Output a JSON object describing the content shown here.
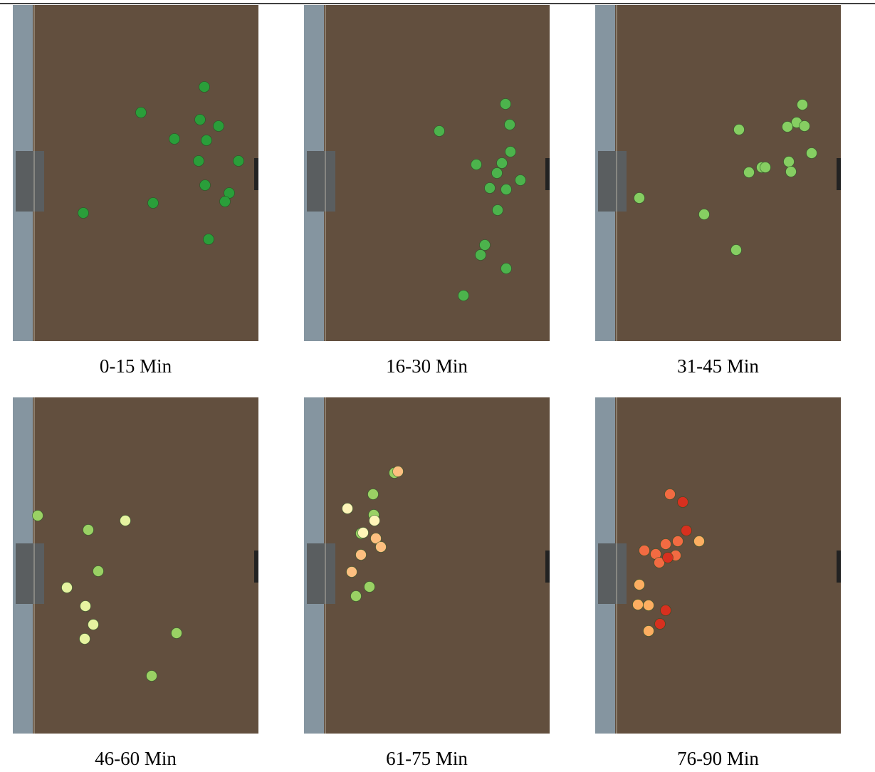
{
  "panels": [
    {
      "label": "0-15 Min"
    },
    {
      "label": "16-30 Min"
    },
    {
      "label": "31-45 Min"
    },
    {
      "label": "46-60 Min"
    },
    {
      "label": "61-75 Min"
    },
    {
      "label": "76-90 Min"
    }
  ]
}
